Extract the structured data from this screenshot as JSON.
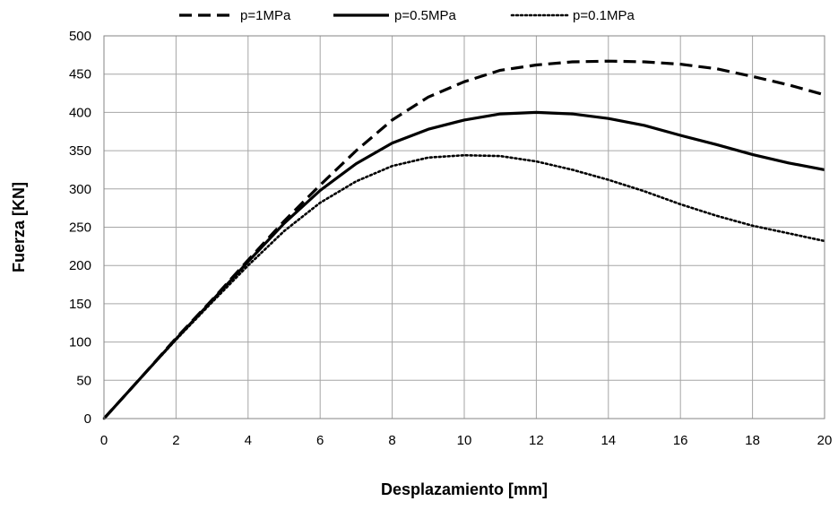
{
  "chart_data": {
    "type": "line",
    "title": "",
    "xlabel": "Desplazamiento [mm]",
    "ylabel": "Fuerza [KN]",
    "xlim": [
      0,
      20
    ],
    "ylim": [
      0,
      500
    ],
    "xticks": [
      0,
      2,
      4,
      6,
      8,
      10,
      12,
      14,
      16,
      18,
      20
    ],
    "yticks": [
      0,
      50,
      100,
      150,
      200,
      250,
      300,
      350,
      400,
      450,
      500
    ],
    "grid": true,
    "legend_position": "top",
    "series": [
      {
        "name": "p=1MPa",
        "style": "dashed",
        "color": "#000000",
        "x": [
          0,
          1,
          2,
          3,
          4,
          5,
          6,
          7,
          8,
          9,
          10,
          11,
          12,
          13,
          14,
          15,
          16,
          17,
          18,
          19,
          20
        ],
        "y": [
          0,
          52,
          105,
          155,
          207,
          258,
          305,
          350,
          390,
          420,
          440,
          455,
          462,
          466,
          467,
          466,
          463,
          457,
          447,
          436,
          423
        ]
      },
      {
        "name": "p=0.5MPa",
        "style": "solid",
        "color": "#000000",
        "x": [
          0,
          1,
          2,
          3,
          4,
          5,
          6,
          7,
          8,
          9,
          10,
          11,
          12,
          13,
          14,
          15,
          16,
          17,
          18,
          19,
          20
        ],
        "y": [
          0,
          52,
          104,
          154,
          205,
          255,
          298,
          333,
          360,
          378,
          390,
          398,
          400,
          398,
          392,
          383,
          370,
          358,
          345,
          334,
          325
        ]
      },
      {
        "name": "p=0.1MPa",
        "style": "dotted",
        "color": "#000000",
        "x": [
          0,
          1,
          2,
          3,
          4,
          5,
          6,
          7,
          8,
          9,
          10,
          11,
          12,
          13,
          14,
          15,
          16,
          17,
          18,
          19,
          20
        ],
        "y": [
          0,
          52,
          103,
          152,
          200,
          245,
          282,
          310,
          330,
          341,
          344,
          343,
          336,
          325,
          312,
          297,
          280,
          265,
          252,
          242,
          232
        ]
      }
    ]
  }
}
